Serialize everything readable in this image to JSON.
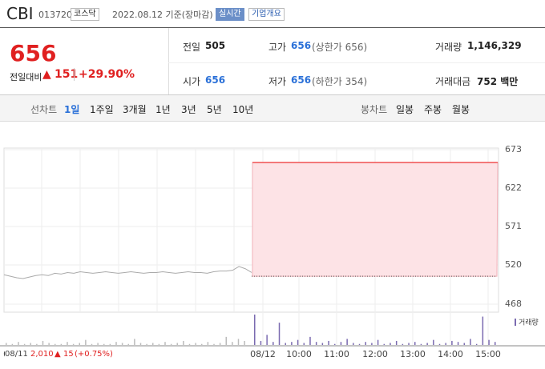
{
  "header": {
    "name": "CBI",
    "code": "013720",
    "market": "코스닥",
    "date": "2022.08.12 기준(장마감)",
    "realtime": "실시간",
    "company": "기업개요"
  },
  "price": {
    "value": "656",
    "change_label": "전일대비",
    "arrow": "▲",
    "change": "151",
    "rate": "+29.90%"
  },
  "stats": [
    [
      {
        "label": "전일",
        "value": "505"
      },
      {
        "label": "고가",
        "value": "656",
        "note": "(상한가 656)"
      },
      {
        "label": "거래량",
        "value": "1,146,329"
      }
    ],
    [
      {
        "label": "시가",
        "value": "656"
      },
      {
        "label": "저가",
        "value": "656",
        "note": "(하한가 354)"
      },
      {
        "label": "거래대금",
        "value": "752 백만"
      }
    ]
  ],
  "tabs": {
    "line_label": "선차트",
    "line_options": [
      "1일",
      "1주일",
      "3개월",
      "1년",
      "3년",
      "5년",
      "10년"
    ],
    "candle_label": "봉차트",
    "candle_options": [
      "일봉",
      "주봉",
      "월봉"
    ]
  },
  "chart_data": {
    "type": "line",
    "ylim": [
      468,
      673
    ],
    "yticks": [
      673,
      622,
      571,
      520,
      468
    ],
    "prev_close": 505,
    "xticks": [
      "08/11",
      "08/12",
      "10:00",
      "11:00",
      "12:00",
      "13:00",
      "14:00",
      "15:00"
    ],
    "series": [
      {
        "color": "#aaaaaa",
        "values": [
          507,
          505,
          503,
          502,
          504,
          506,
          507,
          506,
          509,
          508,
          510,
          509,
          511,
          510,
          509,
          510,
          511,
          510,
          509,
          510,
          511,
          510,
          509,
          510,
          510,
          511,
          510,
          509,
          510,
          511,
          510,
          510,
          509,
          511,
          512,
          512,
          513,
          518,
          515,
          510
        ]
      },
      {
        "color": "#f05050",
        "values": [
          656,
          656
        ]
      }
    ],
    "volume_label": "거래량",
    "volume_color": "#7a6ab0",
    "volume": [
      2,
      1,
      3,
      1,
      2,
      1,
      4,
      2,
      1,
      1,
      3,
      1,
      2,
      5,
      1,
      2,
      1,
      1,
      3,
      2,
      1,
      6,
      2,
      1,
      2,
      1,
      3,
      1,
      2,
      4,
      1,
      2,
      1,
      3,
      1,
      2,
      8,
      3,
      6,
      4,
      30,
      4,
      10,
      3,
      22,
      2,
      3,
      5,
      2,
      8,
      3,
      2,
      4,
      1,
      3,
      6,
      2,
      1,
      3,
      2,
      5,
      1,
      2,
      4,
      1,
      2,
      3,
      1,
      2,
      5,
      1,
      2,
      4,
      3,
      2,
      6,
      1,
      28,
      5,
      3
    ]
  },
  "footer": {
    "date": "08/11",
    "value": "2,010",
    "arrow": "▲",
    "change": "15",
    "rate": "(+0.75%)"
  }
}
